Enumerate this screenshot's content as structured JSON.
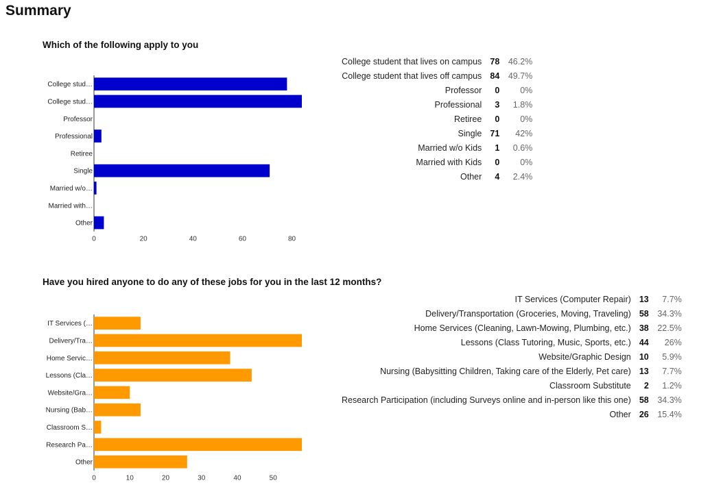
{
  "page_title": "Summary",
  "colors": {
    "chart1_bar": "#0000cc",
    "chart2_bar": "#ff9900"
  },
  "questions": [
    {
      "title": "Which of the following apply to you",
      "rows": [
        {
          "label": "College student that lives on campus",
          "count": "78",
          "pct": "46.2%"
        },
        {
          "label": "College student that lives off campus",
          "count": "84",
          "pct": "49.7%"
        },
        {
          "label": "Professor",
          "count": "0",
          "pct": "0%"
        },
        {
          "label": "Professional",
          "count": "3",
          "pct": "1.8%"
        },
        {
          "label": "Retiree",
          "count": "0",
          "pct": "0%"
        },
        {
          "label": "Single",
          "count": "71",
          "pct": "42%"
        },
        {
          "label": "Married w/o Kids",
          "count": "1",
          "pct": "0.6%"
        },
        {
          "label": "Married with Kids",
          "count": "0",
          "pct": "0%"
        },
        {
          "label": "Other",
          "count": "4",
          "pct": "2.4%"
        }
      ]
    },
    {
      "title": "Have you hired anyone to do any of these jobs for you in the last 12 months?",
      "rows": [
        {
          "label": "IT Services (Computer Repair)",
          "count": "13",
          "pct": "7.7%"
        },
        {
          "label": "Delivery/Transportation (Groceries, Moving, Traveling)",
          "count": "58",
          "pct": "34.3%"
        },
        {
          "label": "Home Services (Cleaning, Lawn-Mowing, Plumbing, etc.)",
          "count": "38",
          "pct": "22.5%"
        },
        {
          "label": "Lessons (Class Tutoring, Music, Sports, etc.)",
          "count": "44",
          "pct": "26%"
        },
        {
          "label": "Website/Graphic Design",
          "count": "10",
          "pct": "5.9%"
        },
        {
          "label": "Nursing (Babysitting Children, Taking care of the Elderly, Pet care)",
          "count": "13",
          "pct": "7.7%"
        },
        {
          "label": "Classroom Substitute",
          "count": "2",
          "pct": "1.2%"
        },
        {
          "label": "Research Participation (including Surveys online and in-person like this one)",
          "count": "58",
          "pct": "34.3%"
        },
        {
          "label": "Other",
          "count": "26",
          "pct": "15.4%"
        }
      ]
    }
  ],
  "chart_data": [
    {
      "type": "bar",
      "orientation": "horizontal",
      "categories": [
        "College stud…",
        "College stud…",
        "Professor",
        "Professional",
        "Retiree",
        "Single",
        "Married w/o…",
        "Married with…",
        "Other"
      ],
      "values": [
        78,
        84,
        0,
        3,
        0,
        71,
        1,
        0,
        4
      ],
      "xticks": [
        0,
        20,
        40,
        60,
        80
      ],
      "xlim": [
        0,
        84
      ],
      "grid": false,
      "color": "#0000cc"
    },
    {
      "type": "bar",
      "orientation": "horizontal",
      "categories": [
        "IT Services (…",
        "Delivery/Tra…",
        "Home Servic…",
        "Lessons (Cla…",
        "Website/Gra…",
        "Nursing (Bab…",
        "Classroom S…",
        "Research Pa…",
        "Other"
      ],
      "values": [
        13,
        58,
        38,
        44,
        10,
        13,
        2,
        58,
        26
      ],
      "xticks": [
        0,
        10,
        20,
        30,
        40,
        50
      ],
      "xlim": [
        0,
        58
      ],
      "grid": false,
      "color": "#ff9900"
    }
  ]
}
